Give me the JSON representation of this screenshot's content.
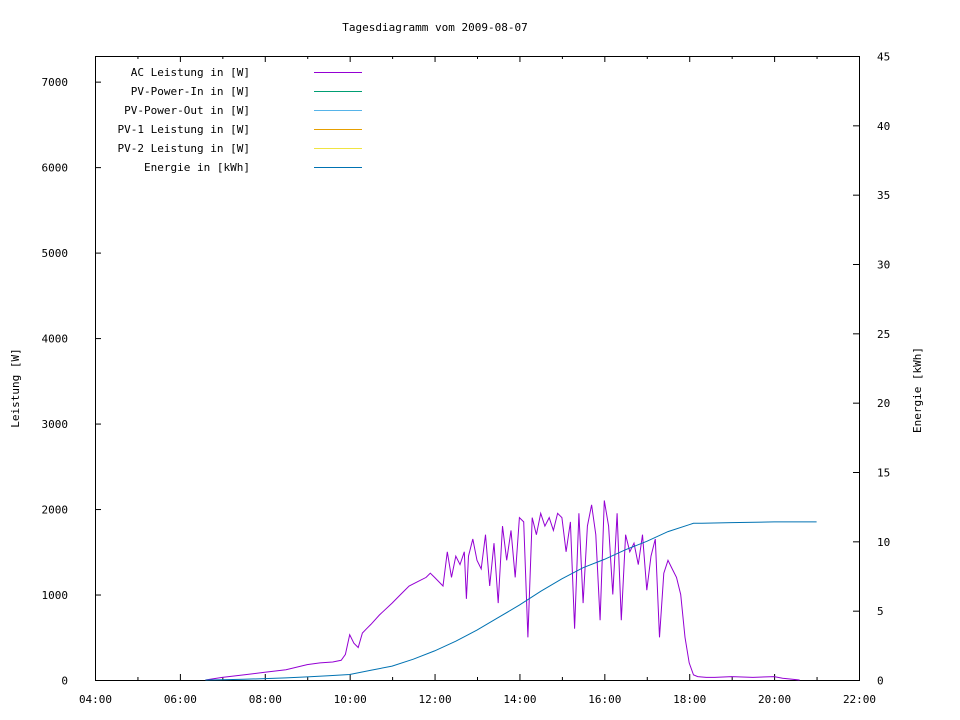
{
  "chart_data": {
    "type": "line",
    "title": "Tagesdiagramm vom 2009-08-07",
    "xlabel": "",
    "ylabel_left": "Leistung [W]",
    "ylabel_right": "Energie [kWh]",
    "x_ticks": [
      "04:00",
      "06:00",
      "08:00",
      "10:00",
      "12:00",
      "14:00",
      "16:00",
      "18:00",
      "20:00",
      "22:00"
    ],
    "xlim_hours": [
      4,
      22
    ],
    "y_left_ticks": [
      0,
      1000,
      2000,
      3000,
      4000,
      5000,
      6000,
      7000
    ],
    "y_left_lim": [
      0,
      7300
    ],
    "y_right_ticks": [
      0,
      5,
      10,
      15,
      20,
      25,
      30,
      35,
      40,
      45
    ],
    "y_right_lim": [
      0,
      45
    ],
    "legend_position": "top-left",
    "grid": false,
    "series": [
      {
        "name": "AC Leistung in [W]",
        "color": "#9400d3",
        "axis": "left",
        "x": [
          6.6,
          7.0,
          7.5,
          8.0,
          8.5,
          9.0,
          9.3,
          9.6,
          9.8,
          9.9,
          10.0,
          10.1,
          10.2,
          10.3,
          10.4,
          10.5,
          10.7,
          11.0,
          11.2,
          11.4,
          11.6,
          11.8,
          11.9,
          12.0,
          12.2,
          12.3,
          12.4,
          12.5,
          12.6,
          12.7,
          12.75,
          12.8,
          12.9,
          13.0,
          13.1,
          13.2,
          13.3,
          13.4,
          13.5,
          13.6,
          13.7,
          13.8,
          13.9,
          14.0,
          14.1,
          14.2,
          14.3,
          14.4,
          14.5,
          14.6,
          14.7,
          14.8,
          14.9,
          15.0,
          15.1,
          15.2,
          15.3,
          15.4,
          15.5,
          15.6,
          15.7,
          15.8,
          15.9,
          16.0,
          16.1,
          16.2,
          16.3,
          16.4,
          16.5,
          16.6,
          16.7,
          16.8,
          16.9,
          17.0,
          17.1,
          17.2,
          17.3,
          17.4,
          17.5,
          17.6,
          17.7,
          17.8,
          17.9,
          18.0,
          18.1,
          18.2,
          18.4,
          18.6,
          19.0,
          19.5,
          20.0,
          20.2,
          20.4,
          20.6
        ],
        "values": [
          0,
          30,
          60,
          90,
          120,
          180,
          200,
          210,
          230,
          300,
          530,
          430,
          380,
          550,
          600,
          650,
          760,
          900,
          1000,
          1100,
          1150,
          1200,
          1250,
          1200,
          1100,
          1500,
          1200,
          1450,
          1350,
          1500,
          950,
          1450,
          1650,
          1400,
          1300,
          1700,
          1100,
          1600,
          900,
          1800,
          1400,
          1750,
          1200,
          1900,
          1850,
          500,
          1900,
          1700,
          1950,
          1800,
          1900,
          1750,
          1950,
          1900,
          1500,
          1850,
          600,
          1950,
          900,
          1800,
          2050,
          1700,
          700,
          2100,
          1800,
          1000,
          1950,
          700,
          1700,
          1500,
          1600,
          1350,
          1700,
          1050,
          1450,
          1650,
          500,
          1250,
          1400,
          1300,
          1200,
          1000,
          500,
          200,
          60,
          40,
          30,
          30,
          40,
          30,
          40,
          20,
          10,
          0
        ]
      },
      {
        "name": "PV-Power-In in [W]",
        "color": "#009e73",
        "axis": "left",
        "x": [],
        "values": []
      },
      {
        "name": "PV-Power-Out in [W]",
        "color": "#56b4e9",
        "axis": "left",
        "x": [],
        "values": []
      },
      {
        "name": "PV-1 Leistung in [W]",
        "color": "#e69f00",
        "axis": "left",
        "x": [],
        "values": []
      },
      {
        "name": "PV-2 Leistung in [W]",
        "color": "#f0e442",
        "axis": "left",
        "x": [],
        "values": []
      },
      {
        "name": "Energie in [kWh]",
        "color": "#0072b2",
        "axis": "right",
        "x": [
          6.6,
          7.0,
          7.5,
          8.0,
          8.5,
          9.0,
          9.5,
          10.0,
          10.5,
          11.0,
          11.5,
          12.0,
          12.5,
          13.0,
          13.5,
          14.0,
          14.5,
          15.0,
          15.5,
          16.0,
          16.5,
          17.0,
          17.5,
          18.0,
          18.1,
          18.3,
          19.0,
          20.0,
          21.0
        ],
        "values": [
          0,
          0.02,
          0.05,
          0.1,
          0.15,
          0.22,
          0.3,
          0.4,
          0.7,
          1.0,
          1.5,
          2.1,
          2.8,
          3.6,
          4.5,
          5.4,
          6.4,
          7.3,
          8.1,
          8.7,
          9.4,
          10.0,
          10.7,
          11.2,
          11.3,
          11.3,
          11.35,
          11.4,
          11.4
        ]
      }
    ]
  }
}
